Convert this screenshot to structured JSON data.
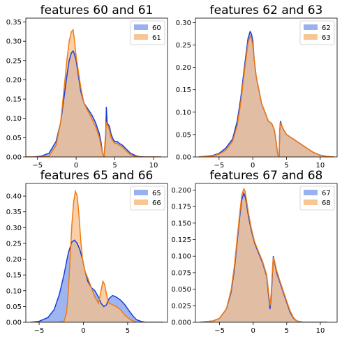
{
  "figure": {
    "background": "#ffffff"
  },
  "colors": {
    "series_a": "#1a3fd6",
    "series_a_fill": "#8ea8f0",
    "series_b": "#f07a10",
    "series_b_fill": "#f7c08a"
  },
  "chart_data": [
    {
      "type": "area",
      "title": "features 60 and 61",
      "xlabel": "",
      "ylabel": "",
      "xlim": [
        -6.5,
        11.8
      ],
      "ylim": [
        0,
        0.36
      ],
      "xticks": [
        -5,
        0,
        5,
        10
      ],
      "yticks": [
        0.0,
        0.05,
        0.1,
        0.15,
        0.2,
        0.25,
        0.3,
        0.35
      ],
      "grid": false,
      "legend_position": "top-right",
      "series": [
        {
          "name": "60",
          "x": [
            -7,
            -5.5,
            -4.5,
            -3.5,
            -2.6,
            -2.0,
            -1.6,
            -1.2,
            -0.9,
            -0.6,
            -0.4,
            -0.2,
            0.0,
            0.3,
            0.6,
            1.0,
            1.5,
            2.0,
            2.5,
            3.0,
            3.2,
            3.4,
            3.6,
            3.8,
            3.9,
            4.0,
            4.1,
            4.3,
            4.5,
            4.8,
            5.0,
            5.3,
            5.6,
            6.0,
            6.5,
            7.0,
            7.5,
            8.0,
            9.0,
            11.0
          ],
          "y": [
            0,
            0,
            0.002,
            0.01,
            0.04,
            0.09,
            0.15,
            0.21,
            0.25,
            0.27,
            0.275,
            0.265,
            0.25,
            0.21,
            0.17,
            0.14,
            0.125,
            0.11,
            0.09,
            0.06,
            0.04,
            0.01,
            0.0,
            0.05,
            0.13,
            0.09,
            0.085,
            0.08,
            0.06,
            0.045,
            0.04,
            0.04,
            0.035,
            0.03,
            0.02,
            0.01,
            0.005,
            0.001,
            0,
            0
          ]
        },
        {
          "name": "61",
          "x": [
            -7,
            -4.5,
            -3.5,
            -2.6,
            -2.0,
            -1.6,
            -1.2,
            -0.9,
            -0.6,
            -0.4,
            -0.2,
            0.0,
            0.3,
            0.6,
            1.0,
            1.5,
            2.0,
            2.5,
            3.0,
            3.2,
            3.4,
            3.6,
            3.8,
            3.9,
            4.0,
            4.1,
            4.3,
            4.5,
            4.8,
            5.0,
            5.3,
            5.6,
            6.0,
            6.5,
            7.0,
            7.5,
            8.0,
            11.0
          ],
          "y": [
            0,
            0,
            0.002,
            0.03,
            0.09,
            0.17,
            0.25,
            0.3,
            0.325,
            0.33,
            0.3,
            0.26,
            0.22,
            0.18,
            0.14,
            0.12,
            0.1,
            0.08,
            0.05,
            0.03,
            0.01,
            0.0,
            0.06,
            0.09,
            0.085,
            0.08,
            0.07,
            0.05,
            0.04,
            0.035,
            0.035,
            0.03,
            0.025,
            0.015,
            0.006,
            0.002,
            0,
            0
          ]
        }
      ]
    },
    {
      "type": "area",
      "title": "features 62 and 63",
      "xlabel": "",
      "ylabel": "",
      "xlim": [
        -8.5,
        12.5
      ],
      "ylim": [
        0,
        0.31
      ],
      "xticks": [
        -5,
        0,
        5,
        10
      ],
      "yticks": [
        0.0,
        0.05,
        0.1,
        0.15,
        0.2,
        0.25,
        0.3
      ],
      "grid": false,
      "legend_position": "top-right",
      "series": [
        {
          "name": "62",
          "x": [
            -8,
            -6,
            -5,
            -4,
            -3,
            -2.3,
            -1.8,
            -1.4,
            -1.0,
            -0.7,
            -0.4,
            -0.2,
            0.0,
            0.2,
            0.5,
            0.9,
            1.3,
            1.8,
            2.3,
            2.8,
            3.2,
            3.5,
            3.7,
            3.9,
            4.0,
            4.1,
            4.3,
            4.6,
            5.0,
            5.5,
            6.0,
            7.0,
            8.0,
            9.0,
            10.0,
            11.0,
            12.0
          ],
          "y": [
            0,
            0.003,
            0.008,
            0.02,
            0.04,
            0.08,
            0.13,
            0.18,
            0.23,
            0.265,
            0.28,
            0.275,
            0.26,
            0.22,
            0.18,
            0.15,
            0.12,
            0.1,
            0.08,
            0.075,
            0.06,
            0.03,
            0.005,
            0.0,
            0.06,
            0.08,
            0.07,
            0.06,
            0.05,
            0.045,
            0.04,
            0.03,
            0.02,
            0.01,
            0.004,
            0.001,
            0
          ]
        },
        {
          "name": "63",
          "x": [
            -8,
            -6,
            -5,
            -4,
            -3,
            -2.3,
            -1.8,
            -1.4,
            -1.0,
            -0.7,
            -0.4,
            -0.2,
            0.0,
            0.2,
            0.5,
            0.9,
            1.3,
            1.8,
            2.3,
            2.8,
            3.2,
            3.5,
            3.7,
            3.9,
            4.0,
            4.1,
            4.3,
            4.6,
            5.0,
            5.5,
            6.0,
            7.0,
            8.0,
            9.0,
            10.0,
            11.0,
            12.0
          ],
          "y": [
            0,
            0.002,
            0.006,
            0.015,
            0.035,
            0.07,
            0.12,
            0.17,
            0.22,
            0.255,
            0.27,
            0.265,
            0.25,
            0.22,
            0.18,
            0.15,
            0.12,
            0.1,
            0.08,
            0.075,
            0.06,
            0.03,
            0.005,
            0.0,
            0.06,
            0.075,
            0.07,
            0.06,
            0.05,
            0.045,
            0.04,
            0.03,
            0.02,
            0.01,
            0.004,
            0.001,
            0
          ]
        }
      ]
    },
    {
      "type": "area",
      "title": "features 65 and 66",
      "xlabel": "",
      "ylabel": "",
      "xlim": [
        -6.5,
        9.5
      ],
      "ylim": [
        0,
        0.44
      ],
      "xticks": [
        -5,
        0,
        5
      ],
      "yticks": [
        0.0,
        0.05,
        0.1,
        0.15,
        0.2,
        0.25,
        0.3,
        0.35,
        0.4
      ],
      "grid": false,
      "legend_position": "top-right",
      "series": [
        {
          "name": "65",
          "x": [
            -6,
            -5,
            -4,
            -3.3,
            -2.7,
            -2.2,
            -1.7,
            -1.3,
            -1.0,
            -0.7,
            -0.4,
            -0.1,
            0.2,
            0.5,
            0.9,
            1.3,
            1.7,
            2.0,
            2.3,
            2.6,
            2.9,
            3.3,
            3.7,
            4.2,
            4.7,
            5.2,
            5.6,
            6.0,
            6.5,
            7.0,
            9.0
          ],
          "y": [
            0,
            0.003,
            0.015,
            0.04,
            0.09,
            0.15,
            0.22,
            0.255,
            0.26,
            0.25,
            0.23,
            0.2,
            0.16,
            0.13,
            0.11,
            0.1,
            0.08,
            0.06,
            0.05,
            0.055,
            0.075,
            0.085,
            0.08,
            0.07,
            0.055,
            0.035,
            0.02,
            0.008,
            0.003,
            0,
            0
          ]
        },
        {
          "name": "66",
          "x": [
            -6,
            -3,
            -2.2,
            -1.9,
            -1.7,
            -1.5,
            -1.3,
            -1.1,
            -0.9,
            -0.7,
            -0.5,
            -0.3,
            -0.1,
            0.2,
            0.5,
            0.9,
            1.3,
            1.7,
            2.0,
            2.2,
            2.4,
            2.6,
            2.8,
            3.0,
            3.3,
            3.7,
            4.2,
            4.6,
            5.0,
            5.4,
            5.8,
            6.2,
            9.0
          ],
          "y": [
            0,
            0,
            0.003,
            0.03,
            0.1,
            0.2,
            0.31,
            0.38,
            0.415,
            0.4,
            0.34,
            0.26,
            0.2,
            0.16,
            0.14,
            0.11,
            0.08,
            0.06,
            0.1,
            0.13,
            0.12,
            0.09,
            0.065,
            0.06,
            0.055,
            0.05,
            0.04,
            0.025,
            0.015,
            0.007,
            0.002,
            0,
            0
          ]
        }
      ]
    },
    {
      "type": "area",
      "title": "features 67 and 68",
      "xlabel": "",
      "ylabel": "",
      "xlim": [
        -8.6,
        12.5
      ],
      "ylim": [
        0,
        0.21
      ],
      "xticks": [
        -5,
        0,
        5,
        10
      ],
      "yticks": [
        0.0,
        0.025,
        0.05,
        0.075,
        0.1,
        0.125,
        0.15,
        0.175,
        0.2
      ],
      "grid": false,
      "legend_position": "top-right",
      "series": [
        {
          "name": "67",
          "x": [
            -8,
            -6,
            -5,
            -4,
            -3.3,
            -2.8,
            -2.4,
            -2.0,
            -1.7,
            -1.4,
            -1.2,
            -1.0,
            -0.7,
            -0.3,
            0.2,
            0.8,
            1.4,
            2.0,
            2.3,
            2.5,
            2.7,
            2.9,
            3.0,
            3.2,
            3.5,
            4.0,
            4.5,
            5.0,
            5.5,
            6.0,
            6.5,
            7.5,
            9.0,
            11.0
          ],
          "y": [
            0,
            0.002,
            0.006,
            0.02,
            0.045,
            0.08,
            0.12,
            0.16,
            0.185,
            0.195,
            0.19,
            0.18,
            0.16,
            0.14,
            0.12,
            0.105,
            0.09,
            0.07,
            0.04,
            0.02,
            0.04,
            0.08,
            0.1,
            0.09,
            0.075,
            0.06,
            0.045,
            0.03,
            0.015,
            0.006,
            0.002,
            0,
            0,
            0
          ]
        },
        {
          "name": "68",
          "x": [
            -8,
            -6,
            -5,
            -4,
            -3.3,
            -2.8,
            -2.4,
            -2.0,
            -1.7,
            -1.4,
            -1.2,
            -1.0,
            -0.7,
            -0.3,
            0.2,
            0.8,
            1.4,
            2.0,
            2.3,
            2.5,
            2.7,
            2.9,
            3.0,
            3.2,
            3.5,
            4.0,
            4.5,
            5.0,
            5.5,
            6.0,
            6.5,
            7.5,
            9.0,
            11.0
          ],
          "y": [
            0,
            0.002,
            0.006,
            0.02,
            0.048,
            0.085,
            0.125,
            0.165,
            0.192,
            0.202,
            0.198,
            0.185,
            0.165,
            0.143,
            0.122,
            0.107,
            0.092,
            0.072,
            0.045,
            0.025,
            0.045,
            0.085,
            0.098,
            0.092,
            0.078,
            0.062,
            0.047,
            0.032,
            0.017,
            0.007,
            0.002,
            0,
            0,
            0
          ]
        }
      ]
    }
  ]
}
